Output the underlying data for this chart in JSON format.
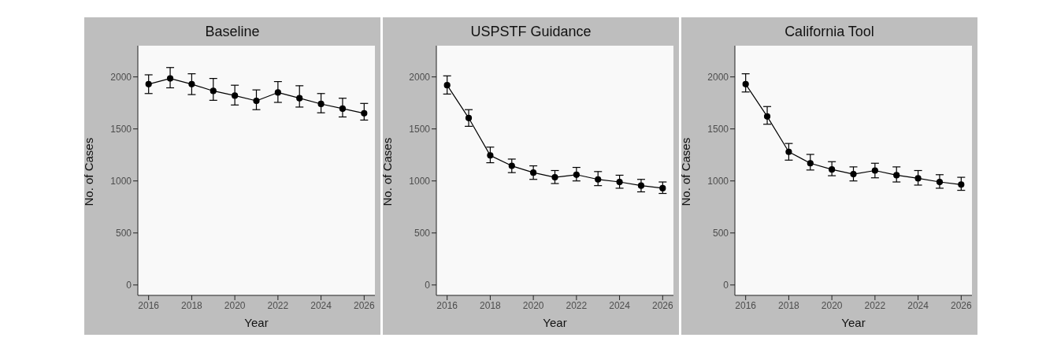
{
  "chart_data": [
    {
      "type": "line",
      "title": "Baseline",
      "xlabel": "Year",
      "ylabel": "No. of Cases",
      "x": [
        2016,
        2017,
        2018,
        2019,
        2020,
        2021,
        2022,
        2023,
        2024,
        2025,
        2026
      ],
      "series": [
        {
          "color": "#000000",
          "values": [
            1930,
            1985,
            1930,
            1865,
            1820,
            1770,
            1850,
            1795,
            1740,
            1695,
            1650
          ],
          "errors": [
            [
              1840,
              2020
            ],
            [
              1895,
              2090
            ],
            [
              1830,
              2030
            ],
            [
              1775,
              1985
            ],
            [
              1730,
              1920
            ],
            [
              1685,
              1875
            ],
            [
              1755,
              1955
            ],
            [
              1710,
              1915
            ],
            [
              1655,
              1840
            ],
            [
              1615,
              1795
            ],
            [
              1585,
              1745
            ]
          ]
        }
      ],
      "xlim": [
        2015.5,
        2026.5
      ],
      "xticks": [
        2016,
        2018,
        2020,
        2022,
        2024,
        2026
      ],
      "ylim": [
        -100,
        2300
      ],
      "yticks": [
        0,
        500,
        1000,
        1500,
        2000
      ],
      "grid": false,
      "marker": "circle",
      "line_style": "solid"
    },
    {
      "type": "line",
      "title": "USPSTF Guidance",
      "xlabel": "Year",
      "ylabel": "No. of Cases",
      "x": [
        2016,
        2017,
        2018,
        2019,
        2020,
        2021,
        2022,
        2023,
        2024,
        2025,
        2026
      ],
      "series": [
        {
          "color": "#000000",
          "values": [
            1920,
            1605,
            1245,
            1145,
            1080,
            1035,
            1060,
            1015,
            990,
            955,
            930
          ],
          "errors": [
            [
              1835,
              2010
            ],
            [
              1525,
              1685
            ],
            [
              1175,
              1325
            ],
            [
              1080,
              1210
            ],
            [
              1015,
              1145
            ],
            [
              975,
              1100
            ],
            [
              1000,
              1130
            ],
            [
              955,
              1090
            ],
            [
              930,
              1055
            ],
            [
              895,
              1015
            ],
            [
              880,
              990
            ]
          ]
        }
      ],
      "xlim": [
        2015.5,
        2026.5
      ],
      "xticks": [
        2016,
        2018,
        2020,
        2022,
        2024,
        2026
      ],
      "ylim": [
        -100,
        2300
      ],
      "yticks": [
        0,
        500,
        1000,
        1500,
        2000
      ],
      "grid": false,
      "marker": "circle",
      "line_style": "solid"
    },
    {
      "type": "line",
      "title": "California Tool",
      "xlabel": "Year",
      "ylabel": "No. of Cases",
      "x": [
        2016,
        2017,
        2018,
        2019,
        2020,
        2021,
        2022,
        2023,
        2024,
        2025,
        2026
      ],
      "series": [
        {
          "color": "#000000",
          "values": [
            1930,
            1620,
            1280,
            1170,
            1110,
            1065,
            1100,
            1055,
            1025,
            990,
            965
          ],
          "errors": [
            [
              1855,
              2030
            ],
            [
              1545,
              1715
            ],
            [
              1200,
              1360
            ],
            [
              1105,
              1255
            ],
            [
              1050,
              1185
            ],
            [
              1000,
              1135
            ],
            [
              1030,
              1170
            ],
            [
              990,
              1135
            ],
            [
              960,
              1100
            ],
            [
              930,
              1060
            ],
            [
              910,
              1035
            ]
          ]
        }
      ],
      "xlim": [
        2015.5,
        2026.5
      ],
      "xticks": [
        2016,
        2018,
        2020,
        2022,
        2024,
        2026
      ],
      "ylim": [
        -100,
        2300
      ],
      "yticks": [
        0,
        500,
        1000,
        1500,
        2000
      ],
      "grid": false,
      "marker": "circle",
      "line_style": "solid"
    }
  ]
}
